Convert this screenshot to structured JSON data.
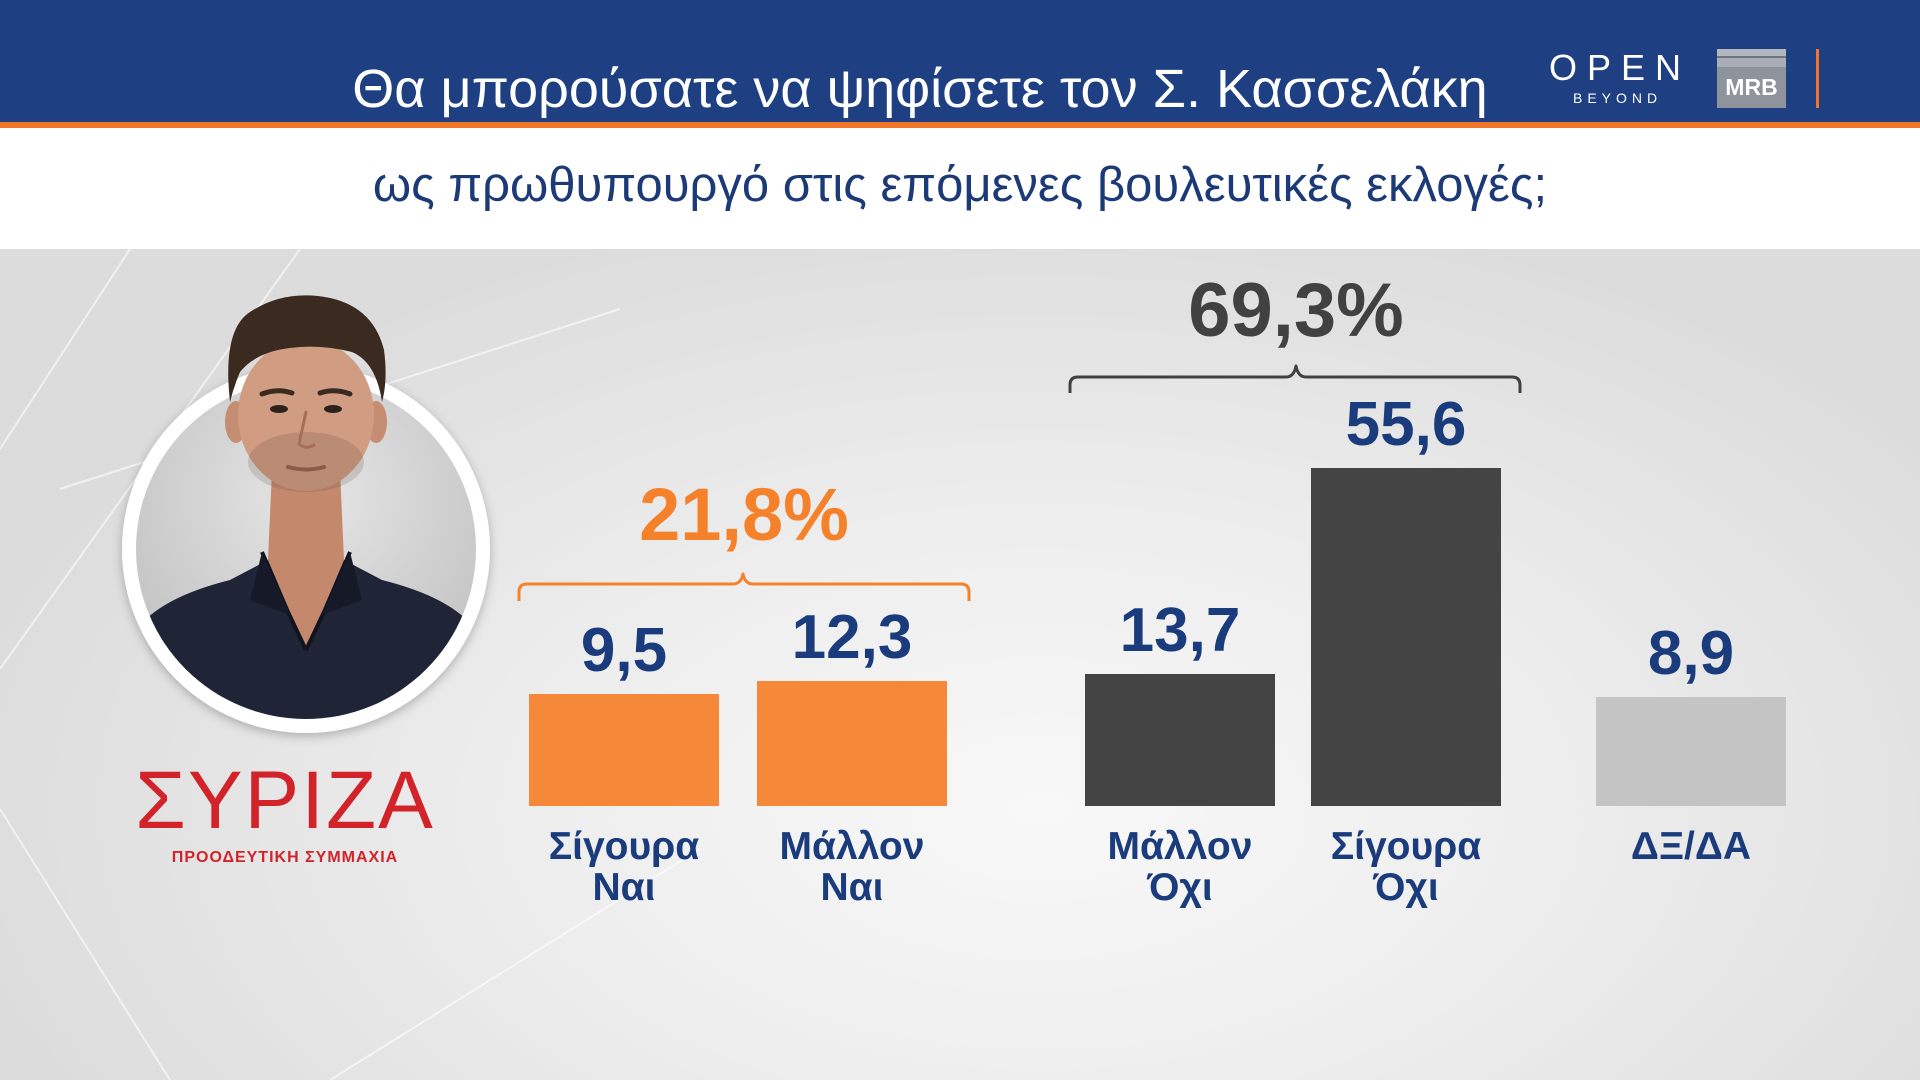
{
  "logos": {
    "channel_name": "OPEN",
    "channel_tagline": "BEYOND",
    "pollster": "MRB"
  },
  "party": {
    "name": "ΣΥΡΙΖΑ",
    "tagline": "ΠΡΟΟΔΕΥΤΙΚΗ ΣΥΜΜΑΧΙΑ",
    "color": "#d2232a"
  },
  "chart_data": {
    "type": "bar",
    "title": "Θα μπορούσατε να ψηφίσετε τον Σ. Κασσελάκη",
    "subtitle": "ως πρωθυπουργό στις επόμενες βουλευτικές εκλογές;",
    "categories": [
      "Σίγουρα Ναι",
      "Μάλλον Ναι",
      "Μάλλον Όχι",
      "Σίγουρα Όχι",
      "ΔΞ/ΔΑ"
    ],
    "values": [
      9.5,
      12.3,
      13.7,
      55.6,
      8.9
    ],
    "value_labels": [
      "9,5",
      "12,3",
      "13,7",
      "55,6",
      "8,9"
    ],
    "colors": [
      "#f6883a",
      "#f6883a",
      "#444444",
      "#444444",
      "#c4c4c4"
    ],
    "groups": [
      {
        "label": "21,8%",
        "value": 21.8,
        "bar_indices": [
          0,
          1
        ],
        "color": "#f5822b"
      },
      {
        "label": "69,3%",
        "value": 69.3,
        "bar_indices": [
          2,
          3
        ],
        "color": "#414141"
      }
    ],
    "xlabel": "",
    "ylabel": "",
    "axes_visible": false,
    "grid": false,
    "legend": "none"
  }
}
